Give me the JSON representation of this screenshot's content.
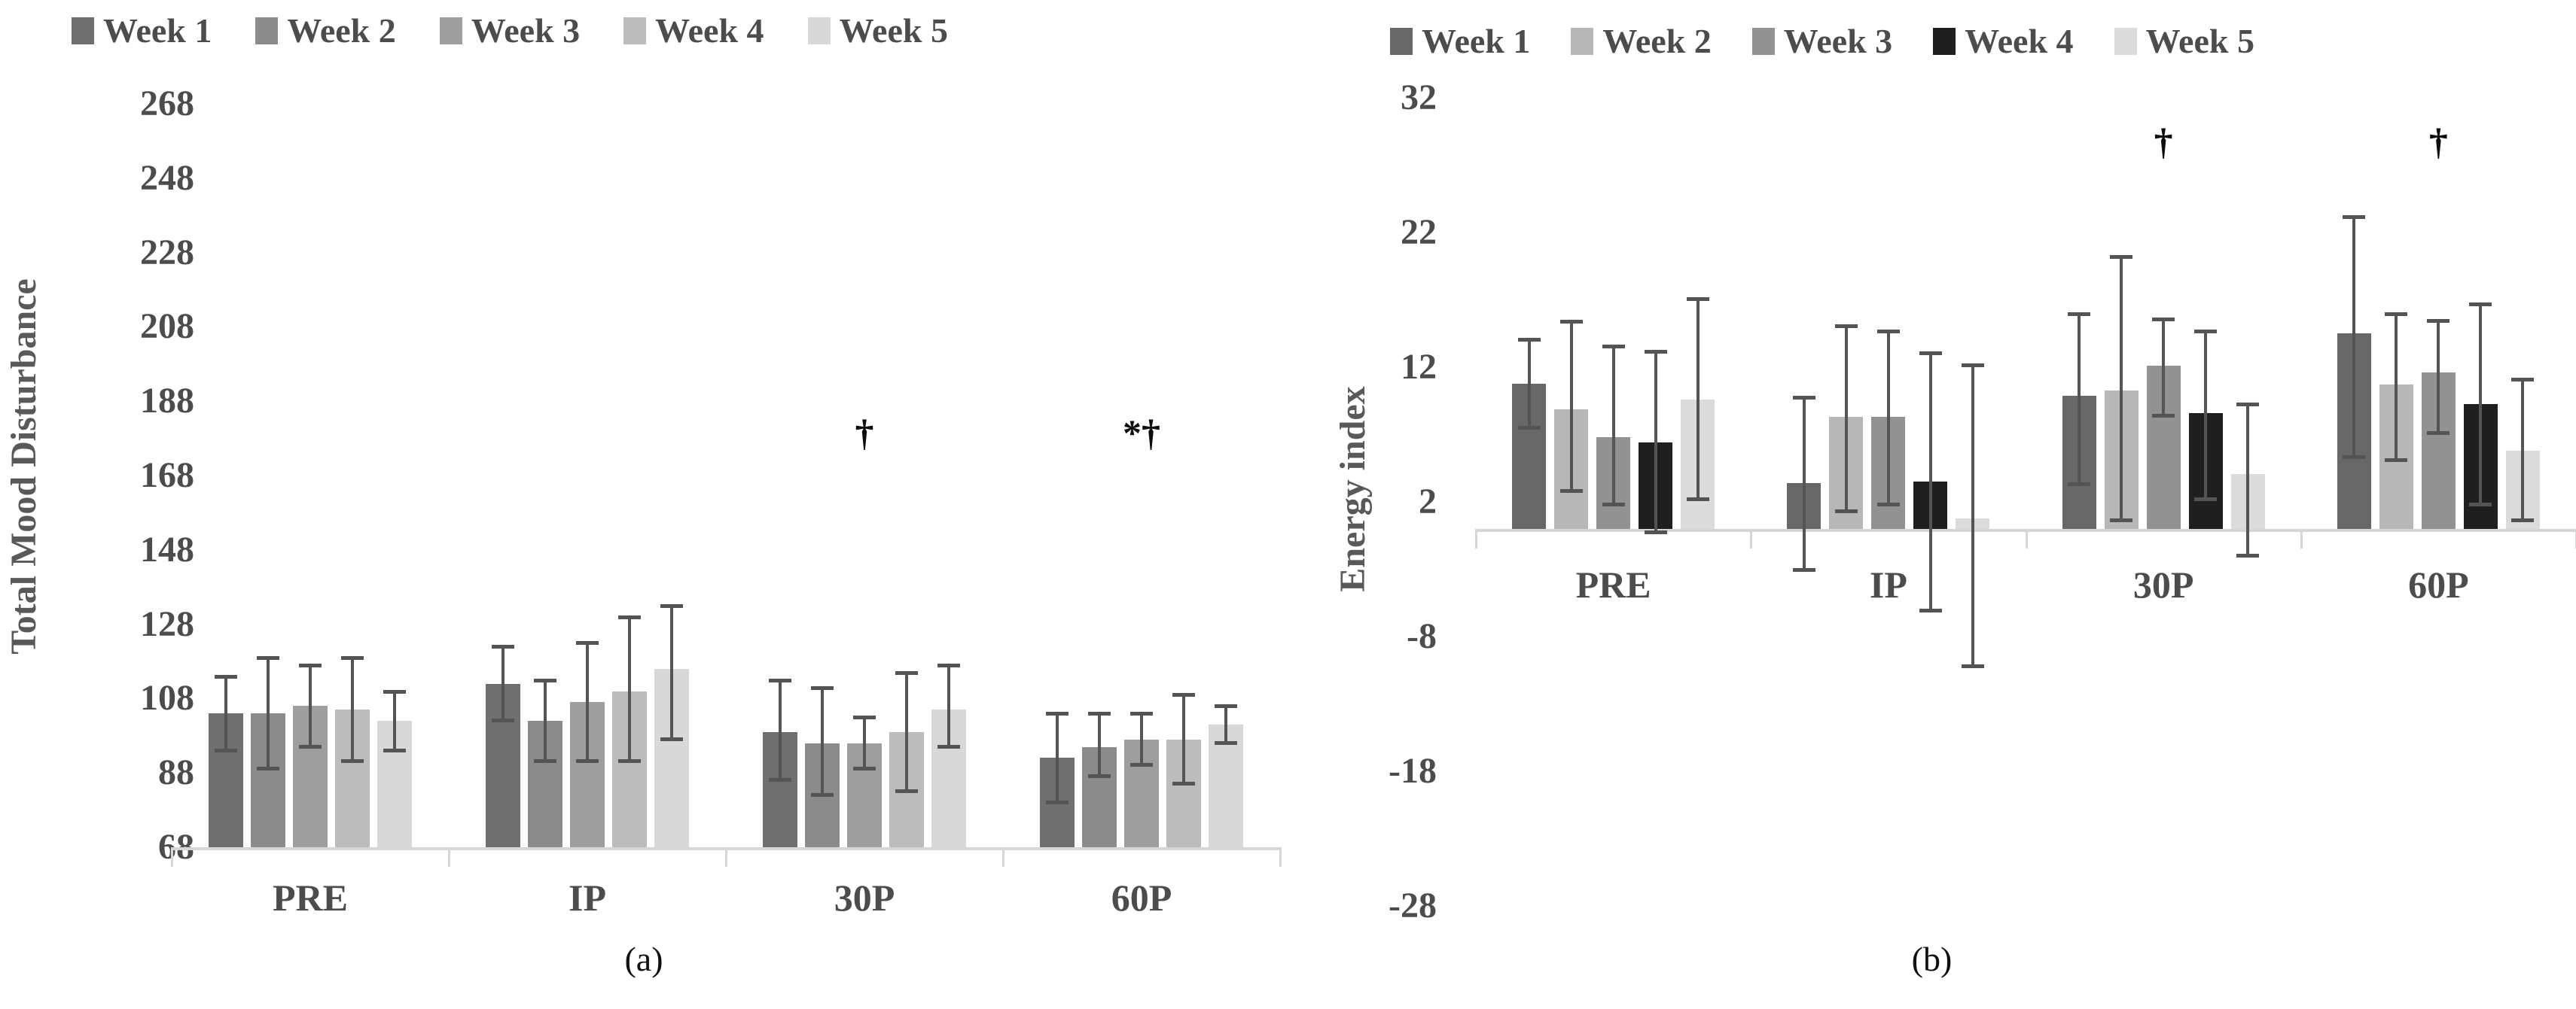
{
  "chart_data": [
    {
      "id": "a",
      "type": "bar",
      "caption": "(a)",
      "ylabel": "Total Mood Disturbance",
      "categories": [
        "PRE",
        "IP",
        "30P",
        "60P"
      ],
      "ylim": [
        68,
        268
      ],
      "yticks": [
        268,
        248,
        228,
        208,
        188,
        168,
        148,
        128,
        108,
        88,
        68
      ],
      "grid": false,
      "legend_position": "top",
      "error_bar_color": "#545454",
      "axis_line_color": "#d6d6d6",
      "series": [
        {
          "name": "Week 1",
          "color": "#6e6e6e",
          "values": [
            104,
            112,
            99,
            92
          ],
          "err_low": [
            94,
            102,
            86,
            80
          ],
          "err_high": [
            114,
            122,
            113,
            104
          ]
        },
        {
          "name": "Week 2",
          "color": "#8b8b8b",
          "values": [
            104,
            102,
            96,
            95
          ],
          "err_low": [
            89,
            91,
            82,
            87
          ],
          "err_high": [
            119,
            113,
            111,
            104
          ]
        },
        {
          "name": "Week 3",
          "color": "#9e9e9e",
          "values": [
            106,
            107,
            96,
            97
          ],
          "err_low": [
            95,
            91,
            89,
            90
          ],
          "err_high": [
            117,
            123,
            103,
            104
          ]
        },
        {
          "name": "Week 4",
          "color": "#bcbcbc",
          "values": [
            105,
            110,
            99,
            97
          ],
          "err_low": [
            91,
            91,
            83,
            85
          ],
          "err_high": [
            119,
            130,
            115,
            109
          ]
        },
        {
          "name": "Week 5",
          "color": "#d8d8d8",
          "values": [
            102,
            116,
            105,
            101
          ],
          "err_low": [
            94,
            97,
            95,
            96
          ],
          "err_high": [
            110,
            133,
            117,
            106
          ]
        }
      ],
      "annotations": [
        {
          "text": "†",
          "category": "30P",
          "y_value": 179
        },
        {
          "text": "*†",
          "category": "60P",
          "y_value": 179
        }
      ]
    },
    {
      "id": "b",
      "type": "bar",
      "caption": "(b)",
      "ylabel": "Energy index",
      "categories": [
        "PRE",
        "IP",
        "30P",
        "60P"
      ],
      "ylim": [
        -28,
        32
      ],
      "yticks": [
        32,
        22,
        12,
        2,
        -8,
        -18,
        -28
      ],
      "grid": false,
      "legend_position": "top",
      "error_bar_color": "#545454",
      "axis_line_color": "#d6d6d6",
      "series": [
        {
          "name": "Week 1",
          "color": "#686868",
          "values": [
            10.8,
            3.4,
            9.9,
            14.5
          ],
          "err_low": [
            7.5,
            -3.1,
            3.3,
            5.3
          ],
          "err_high": [
            14.1,
            9.8,
            16.0,
            23.2
          ]
        },
        {
          "name": "Week 2",
          "color": "#b7b7b7",
          "values": [
            8.9,
            8.3,
            10.3,
            10.7
          ],
          "err_low": [
            2.8,
            1.3,
            0.6,
            5.1
          ],
          "err_high": [
            15.4,
            15.1,
            20.2,
            16.0
          ]
        },
        {
          "name": "Week 3",
          "color": "#929292",
          "values": [
            6.8,
            8.3,
            12.1,
            11.6
          ],
          "err_low": [
            1.8,
            1.8,
            8.4,
            7.1
          ],
          "err_high": [
            13.6,
            14.7,
            15.6,
            15.5
          ]
        },
        {
          "name": "Week 4",
          "color": "#1f1f1f",
          "values": [
            6.4,
            3.5,
            8.6,
            9.3
          ],
          "err_low": [
            -0.3,
            -6.1,
            2.2,
            1.8
          ],
          "err_high": [
            13.2,
            13.1,
            14.7,
            16.7
          ]
        },
        {
          "name": "Week 5",
          "color": "#dcdcdc",
          "values": [
            9.6,
            0.8,
            4.1,
            5.8
          ],
          "err_low": [
            2.2,
            -10.2,
            -2.0,
            0.6
          ],
          "err_high": [
            17.1,
            12.2,
            9.3,
            11.1
          ]
        }
      ],
      "annotations": [
        {
          "text": "†",
          "category": "30P",
          "y_value": 28.6
        },
        {
          "text": "†",
          "category": "60P",
          "y_value": 28.6
        }
      ]
    }
  ]
}
